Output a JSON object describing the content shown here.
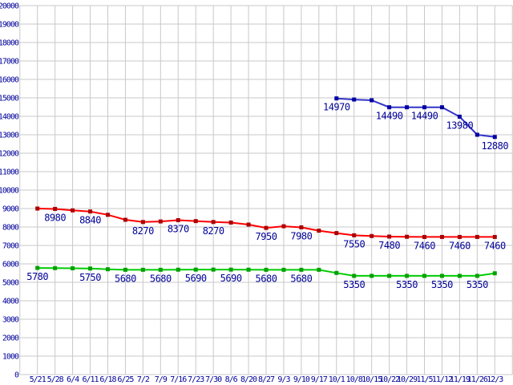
{
  "colors": {
    "background": "#ffffff",
    "grid": "#c8c8c8",
    "label_text": "#000099"
  },
  "chart_data": {
    "type": "line",
    "title": "",
    "legend_position": "none",
    "grid": true,
    "x_tick_labels": [
      "5/21",
      "5/28",
      "6/4",
      "6/11",
      "6/18",
      "6/25",
      "7/2",
      "7/9",
      "7/16",
      "7/23",
      "7/30",
      "8/6",
      "8/20",
      "8/27",
      "9/3",
      "9/10",
      "9/17",
      "10/1",
      "10/8",
      "10/15",
      "10/22",
      "10/29",
      "11/5",
      "11/12",
      "11/19",
      "11/26",
      "12/3"
    ],
    "y_axis": {
      "min": 0,
      "max": 20000,
      "step": 1000
    },
    "ylim": [
      0,
      20000
    ],
    "series": [
      {
        "name": "series-red",
        "line_color": "#ff0000",
        "marker_color": "#aa0000",
        "points": [
          {
            "x": "5/21",
            "value": 9000,
            "label": null
          },
          {
            "x": "5/28",
            "value": 8980,
            "label": "8980"
          },
          {
            "x": "6/4",
            "value": 8900,
            "label": null
          },
          {
            "x": "6/11",
            "value": 8840,
            "label": "8840"
          },
          {
            "x": "6/18",
            "value": 8660,
            "label": null
          },
          {
            "x": "6/25",
            "value": 8390,
            "label": null
          },
          {
            "x": "7/2",
            "value": 8270,
            "label": "8270"
          },
          {
            "x": "7/9",
            "value": 8300,
            "label": null
          },
          {
            "x": "7/16",
            "value": 8370,
            "label": "8370"
          },
          {
            "x": "7/23",
            "value": 8320,
            "label": null
          },
          {
            "x": "7/30",
            "value": 8270,
            "label": "8270"
          },
          {
            "x": "8/6",
            "value": 8240,
            "label": null
          },
          {
            "x": "8/20",
            "value": 8130,
            "label": null
          },
          {
            "x": "8/27",
            "value": 7950,
            "label": "7950"
          },
          {
            "x": "9/3",
            "value": 8040,
            "label": null
          },
          {
            "x": "9/10",
            "value": 7980,
            "label": "7980"
          },
          {
            "x": "9/17",
            "value": 7800,
            "label": null
          },
          {
            "x": "10/1",
            "value": 7670,
            "label": null
          },
          {
            "x": "10/8",
            "value": 7550,
            "label": "7550"
          },
          {
            "x": "10/15",
            "value": 7510,
            "label": null
          },
          {
            "x": "10/22",
            "value": 7480,
            "label": "7480"
          },
          {
            "x": "10/29",
            "value": 7470,
            "label": null
          },
          {
            "x": "11/5",
            "value": 7460,
            "label": "7460"
          },
          {
            "x": "11/12",
            "value": 7460,
            "label": null
          },
          {
            "x": "11/19",
            "value": 7460,
            "label": "7460"
          },
          {
            "x": "11/26",
            "value": 7460,
            "label": null
          },
          {
            "x": "12/3",
            "value": 7460,
            "label": "7460"
          }
        ]
      },
      {
        "name": "series-green",
        "line_color": "#00cc00",
        "marker_color": "#00a000",
        "points": [
          {
            "x": "5/21",
            "value": 5780,
            "label": "5780"
          },
          {
            "x": "5/28",
            "value": 5770,
            "label": null
          },
          {
            "x": "6/4",
            "value": 5760,
            "label": null
          },
          {
            "x": "6/11",
            "value": 5750,
            "label": "5750"
          },
          {
            "x": "6/18",
            "value": 5710,
            "label": null
          },
          {
            "x": "6/25",
            "value": 5680,
            "label": "5680"
          },
          {
            "x": "7/2",
            "value": 5680,
            "label": null
          },
          {
            "x": "7/9",
            "value": 5680,
            "label": "5680"
          },
          {
            "x": "7/16",
            "value": 5685,
            "label": null
          },
          {
            "x": "7/23",
            "value": 5690,
            "label": "5690"
          },
          {
            "x": "7/30",
            "value": 5690,
            "label": null
          },
          {
            "x": "8/6",
            "value": 5690,
            "label": "5690"
          },
          {
            "x": "8/20",
            "value": 5685,
            "label": null
          },
          {
            "x": "8/27",
            "value": 5680,
            "label": "5680"
          },
          {
            "x": "9/3",
            "value": 5680,
            "label": null
          },
          {
            "x": "9/10",
            "value": 5680,
            "label": "5680"
          },
          {
            "x": "9/17",
            "value": 5680,
            "label": null
          },
          {
            "x": "10/1",
            "value": 5510,
            "label": null
          },
          {
            "x": "10/8",
            "value": 5350,
            "label": "5350"
          },
          {
            "x": "10/15",
            "value": 5350,
            "label": null
          },
          {
            "x": "10/22",
            "value": 5350,
            "label": null
          },
          {
            "x": "10/29",
            "value": 5350,
            "label": "5350"
          },
          {
            "x": "11/5",
            "value": 5350,
            "label": null
          },
          {
            "x": "11/12",
            "value": 5350,
            "label": "5350"
          },
          {
            "x": "11/19",
            "value": 5350,
            "label": null
          },
          {
            "x": "11/26",
            "value": 5350,
            "label": "5350"
          },
          {
            "x": "12/3",
            "value": 5490,
            "label": null
          }
        ]
      },
      {
        "name": "series-blue",
        "line_color": "#3333cc",
        "marker_color": "#0000a0",
        "points": [
          {
            "x": "10/1",
            "value": 14970,
            "label": "14970"
          },
          {
            "x": "10/8",
            "value": 14910,
            "label": null
          },
          {
            "x": "10/15",
            "value": 14870,
            "label": null
          },
          {
            "x": "10/22",
            "value": 14490,
            "label": "14490"
          },
          {
            "x": "10/29",
            "value": 14490,
            "label": null
          },
          {
            "x": "11/5",
            "value": 14490,
            "label": "14490"
          },
          {
            "x": "11/12",
            "value": 14490,
            "label": null
          },
          {
            "x": "11/19",
            "value": 13980,
            "label": "13980"
          },
          {
            "x": "11/26",
            "value": 13000,
            "label": null
          },
          {
            "x": "12/3",
            "value": 12880,
            "label": "12880"
          }
        ]
      }
    ]
  }
}
